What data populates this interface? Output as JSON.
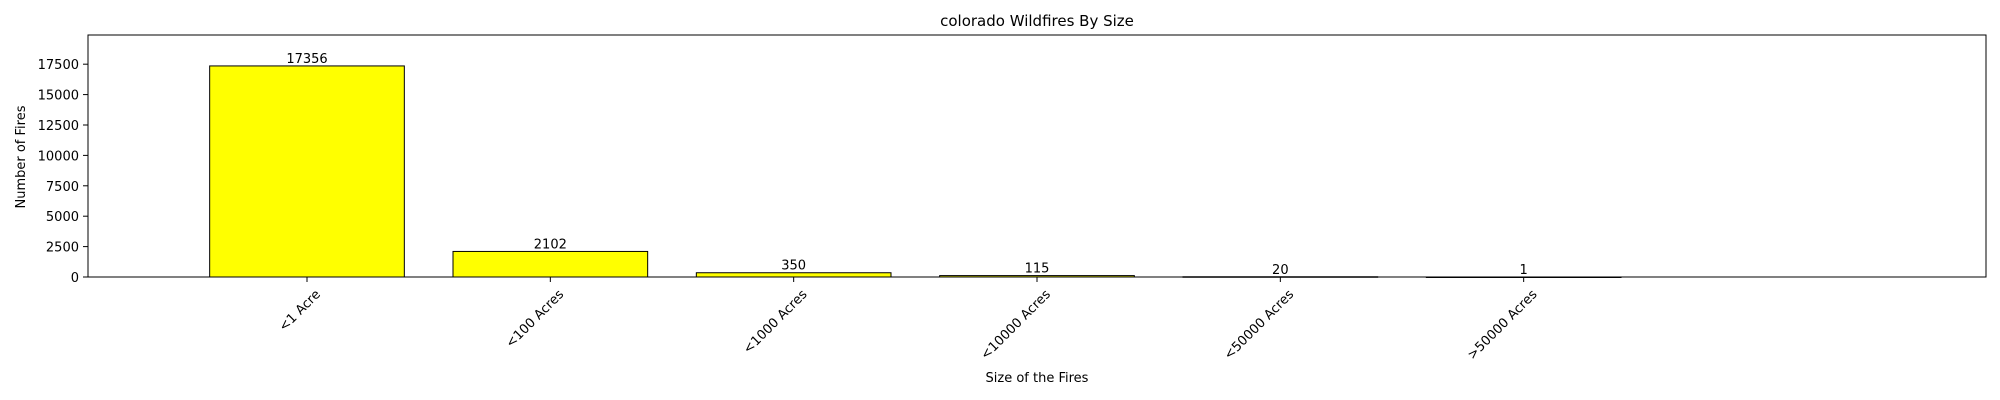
{
  "chart_data": {
    "type": "bar",
    "title": "colorado Wildfires By Size",
    "xlabel": "Size of the Fires",
    "ylabel": "Number of Fires",
    "categories": [
      "<1 Acre",
      "<100 Acres",
      "<1000 Acres",
      "<10000 Acres",
      "<50000 Acres",
      ">50000 Acres"
    ],
    "values": [
      17356,
      2102,
      350,
      115,
      20,
      1
    ],
    "data_labels": [
      "17356",
      "2102",
      "350",
      "115",
      "20",
      "1"
    ],
    "yticks": [
      0,
      2500,
      5000,
      7500,
      10000,
      12500,
      15000,
      17500
    ],
    "ylim": [
      0,
      19900
    ],
    "bar_color": "#ffff00",
    "edge_color": "#000000",
    "grid": false,
    "legend": false
  }
}
